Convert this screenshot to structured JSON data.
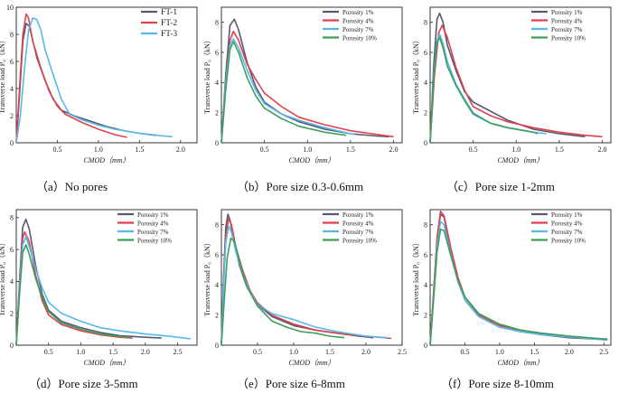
{
  "colors": {
    "porosity_1": "#555a72",
    "porosity_4": "#e0414c",
    "porosity_7": "#58b8ea",
    "porosity_10": "#3aa05c",
    "ft_1": "#555a72",
    "ft_2": "#e0414c",
    "ft_3": "#58b8ea",
    "axis": "#222222"
  },
  "chart_data": [
    {
      "type": "line",
      "caption": "（a）No pores",
      "xlabel": "CMOD（mm）",
      "ylabel": "Transverse load P₀（kN）",
      "xlim": [
        0,
        2.2
      ],
      "ylim": [
        0,
        10
      ],
      "xticks": [
        "0.5",
        "1.0",
        "1.5",
        "2.0"
      ],
      "xtick_values": [
        0.5,
        1.0,
        1.5,
        2.0
      ],
      "yticks": [
        "0",
        "2",
        "4",
        "6",
        "8",
        "10"
      ],
      "ytick_values": [
        0,
        2,
        4,
        6,
        8,
        10
      ],
      "legend": "top-right",
      "series": [
        {
          "name": "FT-1",
          "color_key": "ft_1",
          "x": [
            0,
            0.04,
            0.08,
            0.12,
            0.16,
            0.25,
            0.35,
            0.45,
            0.55,
            0.7,
            0.9,
            1.1,
            1.3,
            1.5,
            1.7
          ],
          "y": [
            0,
            3.5,
            7.5,
            8.8,
            8.6,
            6.3,
            4.6,
            3.2,
            2.4,
            2.0,
            1.6,
            1.2,
            0.9,
            0.7,
            0.55
          ]
        },
        {
          "name": "FT-2",
          "color_key": "ft_2",
          "x": [
            0,
            0.04,
            0.08,
            0.12,
            0.15,
            0.2,
            0.3,
            0.4,
            0.5,
            0.6,
            0.8,
            1.0,
            1.2,
            1.35
          ],
          "y": [
            0,
            4.0,
            8.0,
            9.5,
            9.2,
            7.5,
            5.5,
            3.8,
            2.7,
            2.1,
            1.5,
            1.0,
            0.6,
            0.4
          ]
        },
        {
          "name": "FT-3",
          "color_key": "ft_3",
          "x": [
            0,
            0.05,
            0.1,
            0.15,
            0.2,
            0.25,
            0.3,
            0.35,
            0.45,
            0.55,
            0.65,
            0.8,
            1.0,
            1.2,
            1.5,
            1.8,
            1.9
          ],
          "y": [
            0,
            2.0,
            5.5,
            8.3,
            9.2,
            9.1,
            8.3,
            6.9,
            5.0,
            3.2,
            2.1,
            1.7,
            1.3,
            1.0,
            0.7,
            0.5,
            0.45
          ]
        }
      ]
    },
    {
      "type": "line",
      "caption": "（b）Pore size 0.3-0.6mm",
      "xlabel": "CMOD（mm）",
      "ylabel": "Transverse load P₀（kN）",
      "xlim": [
        0,
        2.1
      ],
      "ylim": [
        0,
        9
      ],
      "xticks": [
        "0.5",
        "1.0",
        "1.5",
        "2.0"
      ],
      "xtick_values": [
        0.5,
        1.0,
        1.5,
        2.0
      ],
      "yticks": [
        "0",
        "2",
        "4",
        "6",
        "8"
      ],
      "ytick_values": [
        0,
        2,
        4,
        6,
        8
      ],
      "legend": "top-right",
      "series": [
        {
          "name": "Porosity 1%",
          "color_key": "porosity_1",
          "x": [
            0,
            0.05,
            0.1,
            0.15,
            0.2,
            0.3,
            0.4,
            0.5,
            0.7,
            0.9,
            1.2,
            1.5,
            1.8,
            1.95
          ],
          "y": [
            0,
            4.5,
            7.8,
            8.2,
            7.5,
            5.3,
            3.7,
            2.7,
            1.9,
            1.4,
            0.9,
            0.6,
            0.45,
            0.4
          ]
        },
        {
          "name": "Porosity 4%",
          "color_key": "porosity_4",
          "x": [
            0,
            0.05,
            0.1,
            0.14,
            0.2,
            0.3,
            0.4,
            0.5,
            0.7,
            0.9,
            1.2,
            1.5,
            1.75,
            2.0
          ],
          "y": [
            0,
            4.0,
            6.8,
            7.4,
            6.8,
            5.2,
            4.2,
            3.3,
            2.4,
            1.7,
            1.2,
            0.8,
            0.6,
            0.4
          ]
        },
        {
          "name": "Porosity 7%",
          "color_key": "porosity_7",
          "x": [
            0,
            0.05,
            0.1,
            0.14,
            0.2,
            0.3,
            0.4,
            0.5,
            0.7,
            0.9,
            1.2,
            1.5,
            1.55
          ],
          "y": [
            0,
            4.0,
            6.5,
            6.9,
            6.3,
            4.8,
            3.5,
            2.6,
            1.9,
            1.5,
            1.0,
            0.6,
            0.55
          ]
        },
        {
          "name": "Porosity 10%",
          "color_key": "porosity_10",
          "x": [
            0,
            0.05,
            0.1,
            0.14,
            0.2,
            0.3,
            0.4,
            0.5,
            0.7,
            0.9,
            1.2,
            1.45
          ],
          "y": [
            0,
            3.5,
            6.2,
            6.7,
            6.0,
            4.3,
            3.1,
            2.3,
            1.6,
            1.1,
            0.7,
            0.5
          ]
        }
      ]
    },
    {
      "type": "line",
      "caption": "（c）Pore size 1-2mm",
      "xlabel": "CMOD（mm）",
      "ylabel": "Transverse load P₀（kN）",
      "xlim": [
        0,
        2.1
      ],
      "ylim": [
        0,
        9
      ],
      "xticks": [
        "0.5",
        "1.0",
        "1.5",
        "2.0"
      ],
      "xtick_values": [
        0.5,
        1.0,
        1.5,
        2.0
      ],
      "yticks": [
        "0",
        "2",
        "4",
        "6",
        "8"
      ],
      "ytick_values": [
        0,
        2,
        4,
        6,
        8
      ],
      "legend": "top-right",
      "series": [
        {
          "name": "Porosity 1%",
          "color_key": "porosity_1",
          "x": [
            0,
            0.04,
            0.08,
            0.11,
            0.15,
            0.2,
            0.3,
            0.4,
            0.5,
            0.7,
            0.9,
            1.2,
            1.5,
            1.8
          ],
          "y": [
            0,
            5.0,
            8.2,
            8.6,
            8.0,
            6.5,
            4.8,
            3.4,
            2.7,
            2.1,
            1.5,
            0.9,
            0.6,
            0.4
          ]
        },
        {
          "name": "Porosity 4%",
          "color_key": "porosity_4",
          "x": [
            0,
            0.05,
            0.1,
            0.14,
            0.2,
            0.3,
            0.4,
            0.5,
            0.7,
            0.9,
            1.2,
            1.5,
            1.8,
            2.0
          ],
          "y": [
            0,
            4.5,
            7.3,
            7.8,
            7.0,
            5.0,
            3.5,
            2.4,
            1.8,
            1.4,
            1.0,
            0.7,
            0.5,
            0.4
          ]
        },
        {
          "name": "Porosity 7%",
          "color_key": "porosity_7",
          "x": [
            0,
            0.04,
            0.08,
            0.11,
            0.15,
            0.2,
            0.3,
            0.4,
            0.5,
            0.7,
            0.9,
            1.2,
            1.35
          ],
          "y": [
            0,
            4.5,
            6.8,
            7.2,
            6.6,
            5.4,
            3.9,
            2.9,
            2.0,
            1.3,
            1.0,
            0.7,
            0.6
          ]
        },
        {
          "name": "Porosity 10%",
          "color_key": "porosity_10",
          "x": [
            0,
            0.04,
            0.08,
            0.11,
            0.15,
            0.2,
            0.3,
            0.4,
            0.5,
            0.7,
            0.9,
            1.2,
            1.25
          ],
          "y": [
            0,
            4.3,
            6.6,
            7.0,
            6.3,
            5.1,
            3.8,
            2.8,
            1.9,
            1.3,
            1.0,
            0.7,
            0.6
          ]
        }
      ]
    },
    {
      "type": "line",
      "caption": "（d）Pore size 3-5mm",
      "xlabel": "CMOD（mm）",
      "ylabel": "Transverse load P₀（kN）",
      "xlim": [
        0,
        2.8
      ],
      "ylim": [
        0,
        8.5
      ],
      "xticks": [
        "0.5",
        "1.0",
        "1.5",
        "2.0",
        "2.5"
      ],
      "xtick_values": [
        0.5,
        1.0,
        1.5,
        2.0,
        2.5
      ],
      "yticks": [
        "0",
        "2",
        "4",
        "6",
        "8"
      ],
      "ytick_values": [
        0,
        2,
        4,
        6,
        8
      ],
      "legend": "top-right",
      "series": [
        {
          "name": "Porosity 1%",
          "color_key": "porosity_1",
          "x": [
            0,
            0.05,
            0.1,
            0.15,
            0.2,
            0.3,
            0.4,
            0.5,
            0.7,
            1.0,
            1.3,
            1.6,
            2.0,
            2.25
          ],
          "y": [
            0,
            4.0,
            7.4,
            7.9,
            7.3,
            5.0,
            3.2,
            2.2,
            1.5,
            1.1,
            0.8,
            0.6,
            0.5,
            0.45
          ]
        },
        {
          "name": "Porosity 4%",
          "color_key": "porosity_4",
          "x": [
            0,
            0.05,
            0.1,
            0.13,
            0.2,
            0.3,
            0.4,
            0.5,
            0.7,
            1.0,
            1.3,
            1.6,
            1.8
          ],
          "y": [
            0,
            3.8,
            6.7,
            7.1,
            6.5,
            4.4,
            2.8,
            1.9,
            1.3,
            0.9,
            0.65,
            0.5,
            0.45
          ]
        },
        {
          "name": "Porosity 7%",
          "color_key": "porosity_7",
          "x": [
            0,
            0.05,
            0.1,
            0.15,
            0.2,
            0.3,
            0.4,
            0.5,
            0.7,
            1.0,
            1.3,
            1.6,
            2.0,
            2.4,
            2.7
          ],
          "y": [
            0,
            3.5,
            6.3,
            6.8,
            6.2,
            4.8,
            3.6,
            2.7,
            2.0,
            1.5,
            1.1,
            0.9,
            0.7,
            0.55,
            0.4
          ]
        },
        {
          "name": "Porosity 10%",
          "color_key": "porosity_10",
          "x": [
            0,
            0.05,
            0.1,
            0.15,
            0.2,
            0.3,
            0.4,
            0.5,
            0.7,
            1.0,
            1.3,
            1.6,
            1.75
          ],
          "y": [
            0,
            3.2,
            5.8,
            6.3,
            5.7,
            4.2,
            3.0,
            2.1,
            1.4,
            1.0,
            0.7,
            0.55,
            0.5
          ]
        }
      ]
    },
    {
      "type": "line",
      "caption": "（e）Pore size 6-8mm",
      "xlabel": "CMOD（mm）",
      "ylabel": "Transverse load P₀（kN）",
      "xlim": [
        0,
        2.5
      ],
      "ylim": [
        0,
        9
      ],
      "xticks": [
        "0.5",
        "1.0",
        "1.5",
        "2.0",
        "2.5"
      ],
      "xtick_values": [
        0.5,
        1.0,
        1.5,
        2.0,
        2.5
      ],
      "yticks": [
        "0",
        "2",
        "4",
        "6",
        "8"
      ],
      "ytick_values": [
        0,
        2,
        4,
        6,
        8
      ],
      "legend": "top-right",
      "series": [
        {
          "name": "Porosity 1%",
          "color_key": "porosity_1",
          "x": [
            0,
            0.03,
            0.06,
            0.09,
            0.12,
            0.18,
            0.25,
            0.35,
            0.5,
            0.7,
            1.0,
            1.3,
            1.6,
            1.9,
            2.1
          ],
          "y": [
            0,
            4.5,
            7.8,
            8.7,
            8.3,
            6.8,
            5.3,
            3.9,
            2.7,
            1.9,
            1.3,
            1.0,
            0.8,
            0.6,
            0.5
          ]
        },
        {
          "name": "Porosity 4%",
          "color_key": "porosity_4",
          "x": [
            0,
            0.03,
            0.06,
            0.1,
            0.14,
            0.2,
            0.3,
            0.4,
            0.5,
            0.7,
            1.0,
            1.3,
            1.6,
            2.0,
            2.35
          ],
          "y": [
            0,
            4.2,
            7.3,
            8.4,
            8.0,
            6.5,
            4.9,
            3.6,
            2.8,
            2.0,
            1.4,
            1.0,
            0.8,
            0.6,
            0.45
          ]
        },
        {
          "name": "Porosity 7%",
          "color_key": "porosity_7",
          "x": [
            0,
            0.03,
            0.06,
            0.1,
            0.14,
            0.2,
            0.3,
            0.4,
            0.5,
            0.7,
            1.0,
            1.3,
            1.6,
            2.0,
            2.3
          ],
          "y": [
            0,
            3.8,
            6.8,
            7.9,
            7.5,
            6.2,
            4.7,
            3.5,
            2.7,
            2.1,
            1.7,
            1.2,
            0.9,
            0.6,
            0.5
          ]
        },
        {
          "name": "Porosity 10%",
          "color_key": "porosity_10",
          "x": [
            0,
            0.04,
            0.08,
            0.13,
            0.18,
            0.25,
            0.35,
            0.5,
            0.7,
            0.9,
            1.1,
            1.3,
            1.5,
            1.7
          ],
          "y": [
            0,
            3.0,
            5.8,
            7.1,
            6.9,
            5.6,
            3.9,
            2.6,
            1.6,
            1.2,
            0.9,
            0.8,
            0.6,
            0.5
          ]
        }
      ]
    },
    {
      "type": "line",
      "caption": "（f）Pore size 8-10mm",
      "xlabel": "CMOD（mm）",
      "ylabel": "Transverse load P₀（kN）",
      "xlim": [
        0,
        2.6
      ],
      "ylim": [
        0,
        9
      ],
      "xticks": [
        "0.5",
        "1.0",
        "1.5",
        "2.0",
        "2.5"
      ],
      "xtick_values": [
        0.5,
        1.0,
        1.5,
        2.0,
        2.5
      ],
      "yticks": [
        "0",
        "2",
        "4",
        "6",
        "8"
      ],
      "ytick_values": [
        0,
        2,
        4,
        6,
        8
      ],
      "legend": "top-right",
      "series": [
        {
          "name": "Porosity 1%",
          "color_key": "porosity_1",
          "x": [
            0,
            0.05,
            0.1,
            0.15,
            0.2,
            0.3,
            0.4,
            0.5,
            0.7,
            1.0,
            1.3,
            1.6,
            2.0,
            2.4,
            2.55
          ],
          "y": [
            0,
            3.5,
            7.0,
            8.7,
            8.5,
            6.2,
            4.3,
            3.0,
            1.9,
            1.2,
            0.9,
            0.7,
            0.5,
            0.4,
            0.35
          ]
        },
        {
          "name": "Porosity 4%",
          "color_key": "porosity_4",
          "x": [
            0,
            0.05,
            0.1,
            0.15,
            0.2,
            0.3,
            0.4,
            0.5,
            0.7,
            1.0,
            1.3,
            1.6,
            2.0,
            2.4,
            2.55
          ],
          "y": [
            0,
            3.5,
            7.2,
            8.9,
            8.6,
            6.4,
            4.5,
            3.2,
            2.0,
            1.3,
            1.0,
            0.8,
            0.6,
            0.45,
            0.4
          ]
        },
        {
          "name": "Porosity 7%",
          "color_key": "porosity_7",
          "x": [
            0,
            0.05,
            0.1,
            0.15,
            0.2,
            0.3,
            0.4,
            0.5,
            0.7,
            1.0,
            1.3,
            1.6,
            2.0,
            2.4,
            2.55
          ],
          "y": [
            0,
            3.2,
            6.6,
            8.2,
            8.0,
            6.0,
            4.2,
            3.0,
            1.9,
            1.2,
            0.9,
            0.7,
            0.55,
            0.4,
            0.35
          ]
        },
        {
          "name": "Porosity 10%",
          "color_key": "porosity_10",
          "x": [
            0,
            0.05,
            0.1,
            0.15,
            0.2,
            0.3,
            0.4,
            0.5,
            0.7,
            1.0,
            1.3,
            1.6,
            2.0,
            2.4,
            2.55
          ],
          "y": [
            0,
            3.0,
            6.2,
            7.7,
            7.6,
            5.9,
            4.3,
            3.2,
            2.1,
            1.4,
            1.0,
            0.8,
            0.6,
            0.45,
            0.4
          ]
        }
      ]
    }
  ]
}
